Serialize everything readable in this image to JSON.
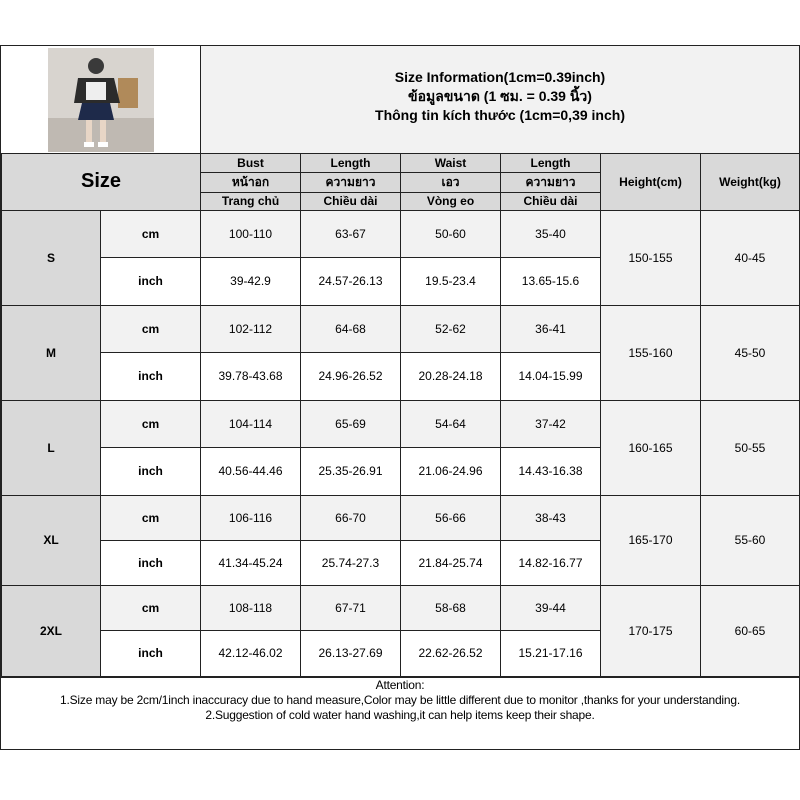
{
  "title": [
    "Size Information(1cm=0.39inch)",
    "ข้อมูลขนาด (1 ซม. = 0.39 นิ้ว)",
    "Thông tin kích thước (1cm=0,39 inch)"
  ],
  "header": {
    "size": "Size",
    "cols": [
      [
        "Bust",
        "หน้าอก",
        "Trang chủ"
      ],
      [
        "Length",
        "ความยาว",
        "Chiều dài"
      ],
      [
        "Waist",
        "เอว",
        "Vòng eo"
      ],
      [
        "Length",
        "ความยาว",
        "Chiều dài"
      ]
    ],
    "height": "Height(cm)",
    "weight": "Weight(kg)"
  },
  "units": {
    "cm": "cm",
    "inch": "inch"
  },
  "rows": [
    {
      "size": "S",
      "cm": [
        "100-110",
        "63-67",
        "50-60",
        "35-40"
      ],
      "inch": [
        "39-42.9",
        "24.57-26.13",
        "19.5-23.4",
        "13.65-15.6"
      ],
      "height": "150-155",
      "weight": "40-45"
    },
    {
      "size": "M",
      "cm": [
        "102-112",
        "64-68",
        "52-62",
        "36-41"
      ],
      "inch": [
        "39.78-43.68",
        "24.96-26.52",
        "20.28-24.18",
        "14.04-15.99"
      ],
      "height": "155-160",
      "weight": "45-50"
    },
    {
      "size": "L",
      "cm": [
        "104-114",
        "65-69",
        "54-64",
        "37-42"
      ],
      "inch": [
        "40.56-44.46",
        "25.35-26.91",
        "21.06-24.96",
        "14.43-16.38"
      ],
      "height": "160-165",
      "weight": "50-55"
    },
    {
      "size": "XL",
      "cm": [
        "106-116",
        "66-70",
        "56-66",
        "38-43"
      ],
      "inch": [
        "41.34-45.24",
        "25.74-27.3",
        "21.84-25.74",
        "14.82-16.77"
      ],
      "height": "165-170",
      "weight": "55-60"
    },
    {
      "size": "2XL",
      "cm": [
        "108-118",
        "67-71",
        "58-68",
        "39-44"
      ],
      "inch": [
        "42.12-46.02",
        "26.13-27.69",
        "22.62-26.52",
        "15.21-17.16"
      ],
      "height": "170-175",
      "weight": "60-65"
    }
  ],
  "attention": {
    "title": "Attention:",
    "lines": [
      "1.Size may be 2cm/1inch inaccuracy due to hand measure,Color may be little different due to monitor ,thanks for your understanding.",
      "2.Suggestion of cold water hand washing,it can help items keep their shape."
    ]
  }
}
